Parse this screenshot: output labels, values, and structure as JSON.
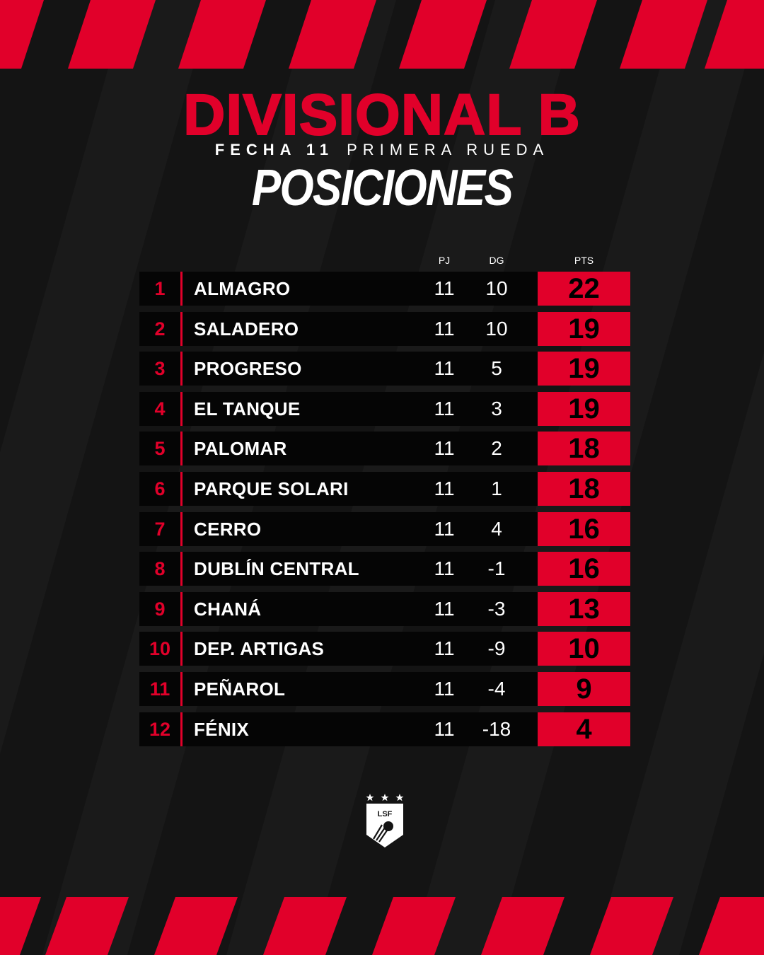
{
  "header": {
    "title": "DIVISIONAL B",
    "subtitle_bold": "FECHA 11",
    "subtitle_rest": "PRIMERA RUEDA",
    "heading": "POSICIONES"
  },
  "columns": {
    "pj": "PJ",
    "dg": "DG",
    "pts": "PTS"
  },
  "standings": [
    {
      "pos": "1",
      "team": "ALMAGRO",
      "pj": "11",
      "dg": "10",
      "pts": "22"
    },
    {
      "pos": "2",
      "team": "SALADERO",
      "pj": "11",
      "dg": "10",
      "pts": "19"
    },
    {
      "pos": "3",
      "team": "PROGRESO",
      "pj": "11",
      "dg": "5",
      "pts": "19"
    },
    {
      "pos": "4",
      "team": "EL TANQUE",
      "pj": "11",
      "dg": "3",
      "pts": "19"
    },
    {
      "pos": "5",
      "team": "PALOMAR",
      "pj": "11",
      "dg": "2",
      "pts": "18"
    },
    {
      "pos": "6",
      "team": "PARQUE SOLARI",
      "pj": "11",
      "dg": "1",
      "pts": "18"
    },
    {
      "pos": "7",
      "team": "CERRO",
      "pj": "11",
      "dg": "4",
      "pts": "16"
    },
    {
      "pos": "8",
      "team": "DUBLÍN CENTRAL",
      "pj": "11",
      "dg": "-1",
      "pts": "16"
    },
    {
      "pos": "9",
      "team": "CHANÁ",
      "pj": "11",
      "dg": "-3",
      "pts": "13"
    },
    {
      "pos": "10",
      "team": "DEP. ARTIGAS",
      "pj": "11",
      "dg": "-9",
      "pts": "10"
    },
    {
      "pos": "11",
      "team": "PEÑAROL",
      "pj": "11",
      "dg": "-4",
      "pts": "9"
    },
    {
      "pos": "12",
      "team": "FÉNIX",
      "pj": "11",
      "dg": "-18",
      "pts": "4"
    }
  ],
  "logo": {
    "text": "LSF",
    "icon": "league-shield-logo",
    "stars": 3
  },
  "colors": {
    "accent": "#e1002a",
    "background": "#141414",
    "row": "#050505"
  }
}
